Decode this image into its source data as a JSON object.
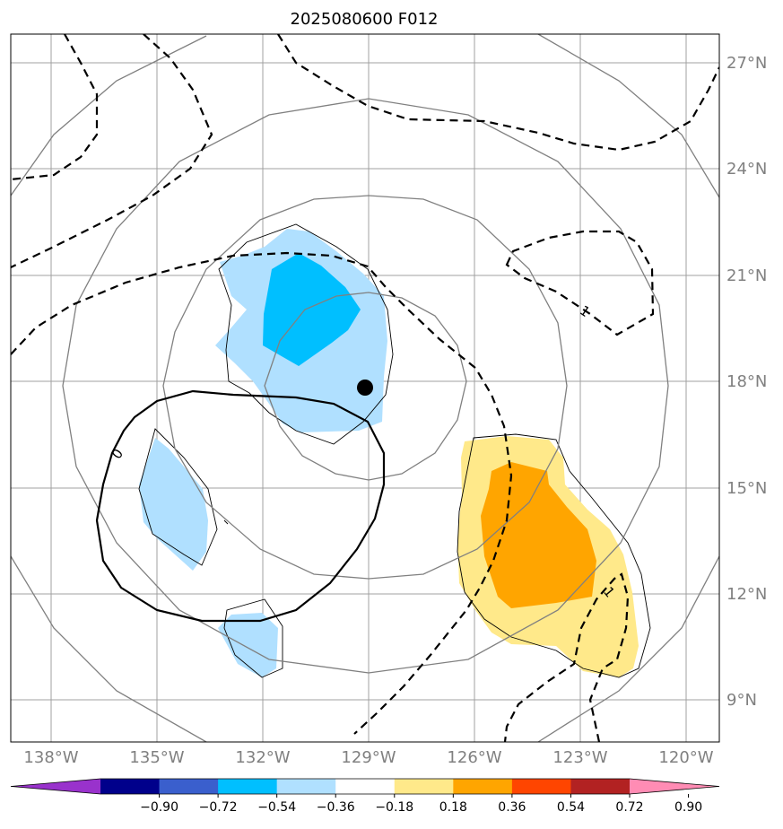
{
  "title": "2025080600 F012",
  "map": {
    "lon_ticks": [
      "138°W",
      "135°W",
      "132°W",
      "129°W",
      "126°W",
      "123°W",
      "120°W"
    ],
    "lat_ticks": [
      "27°N",
      "24°N",
      "21°N",
      "18°N",
      "15°N",
      "12°N",
      "9°N"
    ],
    "center_marker": {
      "lon": -129.0,
      "lat": 17.8,
      "symbol": "filled-circle"
    },
    "contour_labels": {
      "zero": "0",
      "dashed_one": "1",
      "dashed_one_lower": "1"
    },
    "shaded_field_colors": {
      "light_blue": "#b0e0ff",
      "blue": "#00bfff",
      "yellow": "#ffe98a",
      "orange": "#ffa500"
    },
    "range_ring_color": "#808080",
    "gridline_color": "#a0a0a0"
  },
  "colorbar": {
    "colors": [
      "#9932cc",
      "#00008b",
      "#3a5fcd",
      "#00bfff",
      "#b0e0ff",
      "#ffffff",
      "#ffe98a",
      "#ffa500",
      "#ff4500",
      "#b22222",
      "#ff8cb4"
    ],
    "labels": [
      "−0.90",
      "−0.72",
      "−0.54",
      "−0.36",
      "−0.18",
      "0.18",
      "0.36",
      "0.54",
      "0.72",
      "0.90"
    ]
  }
}
